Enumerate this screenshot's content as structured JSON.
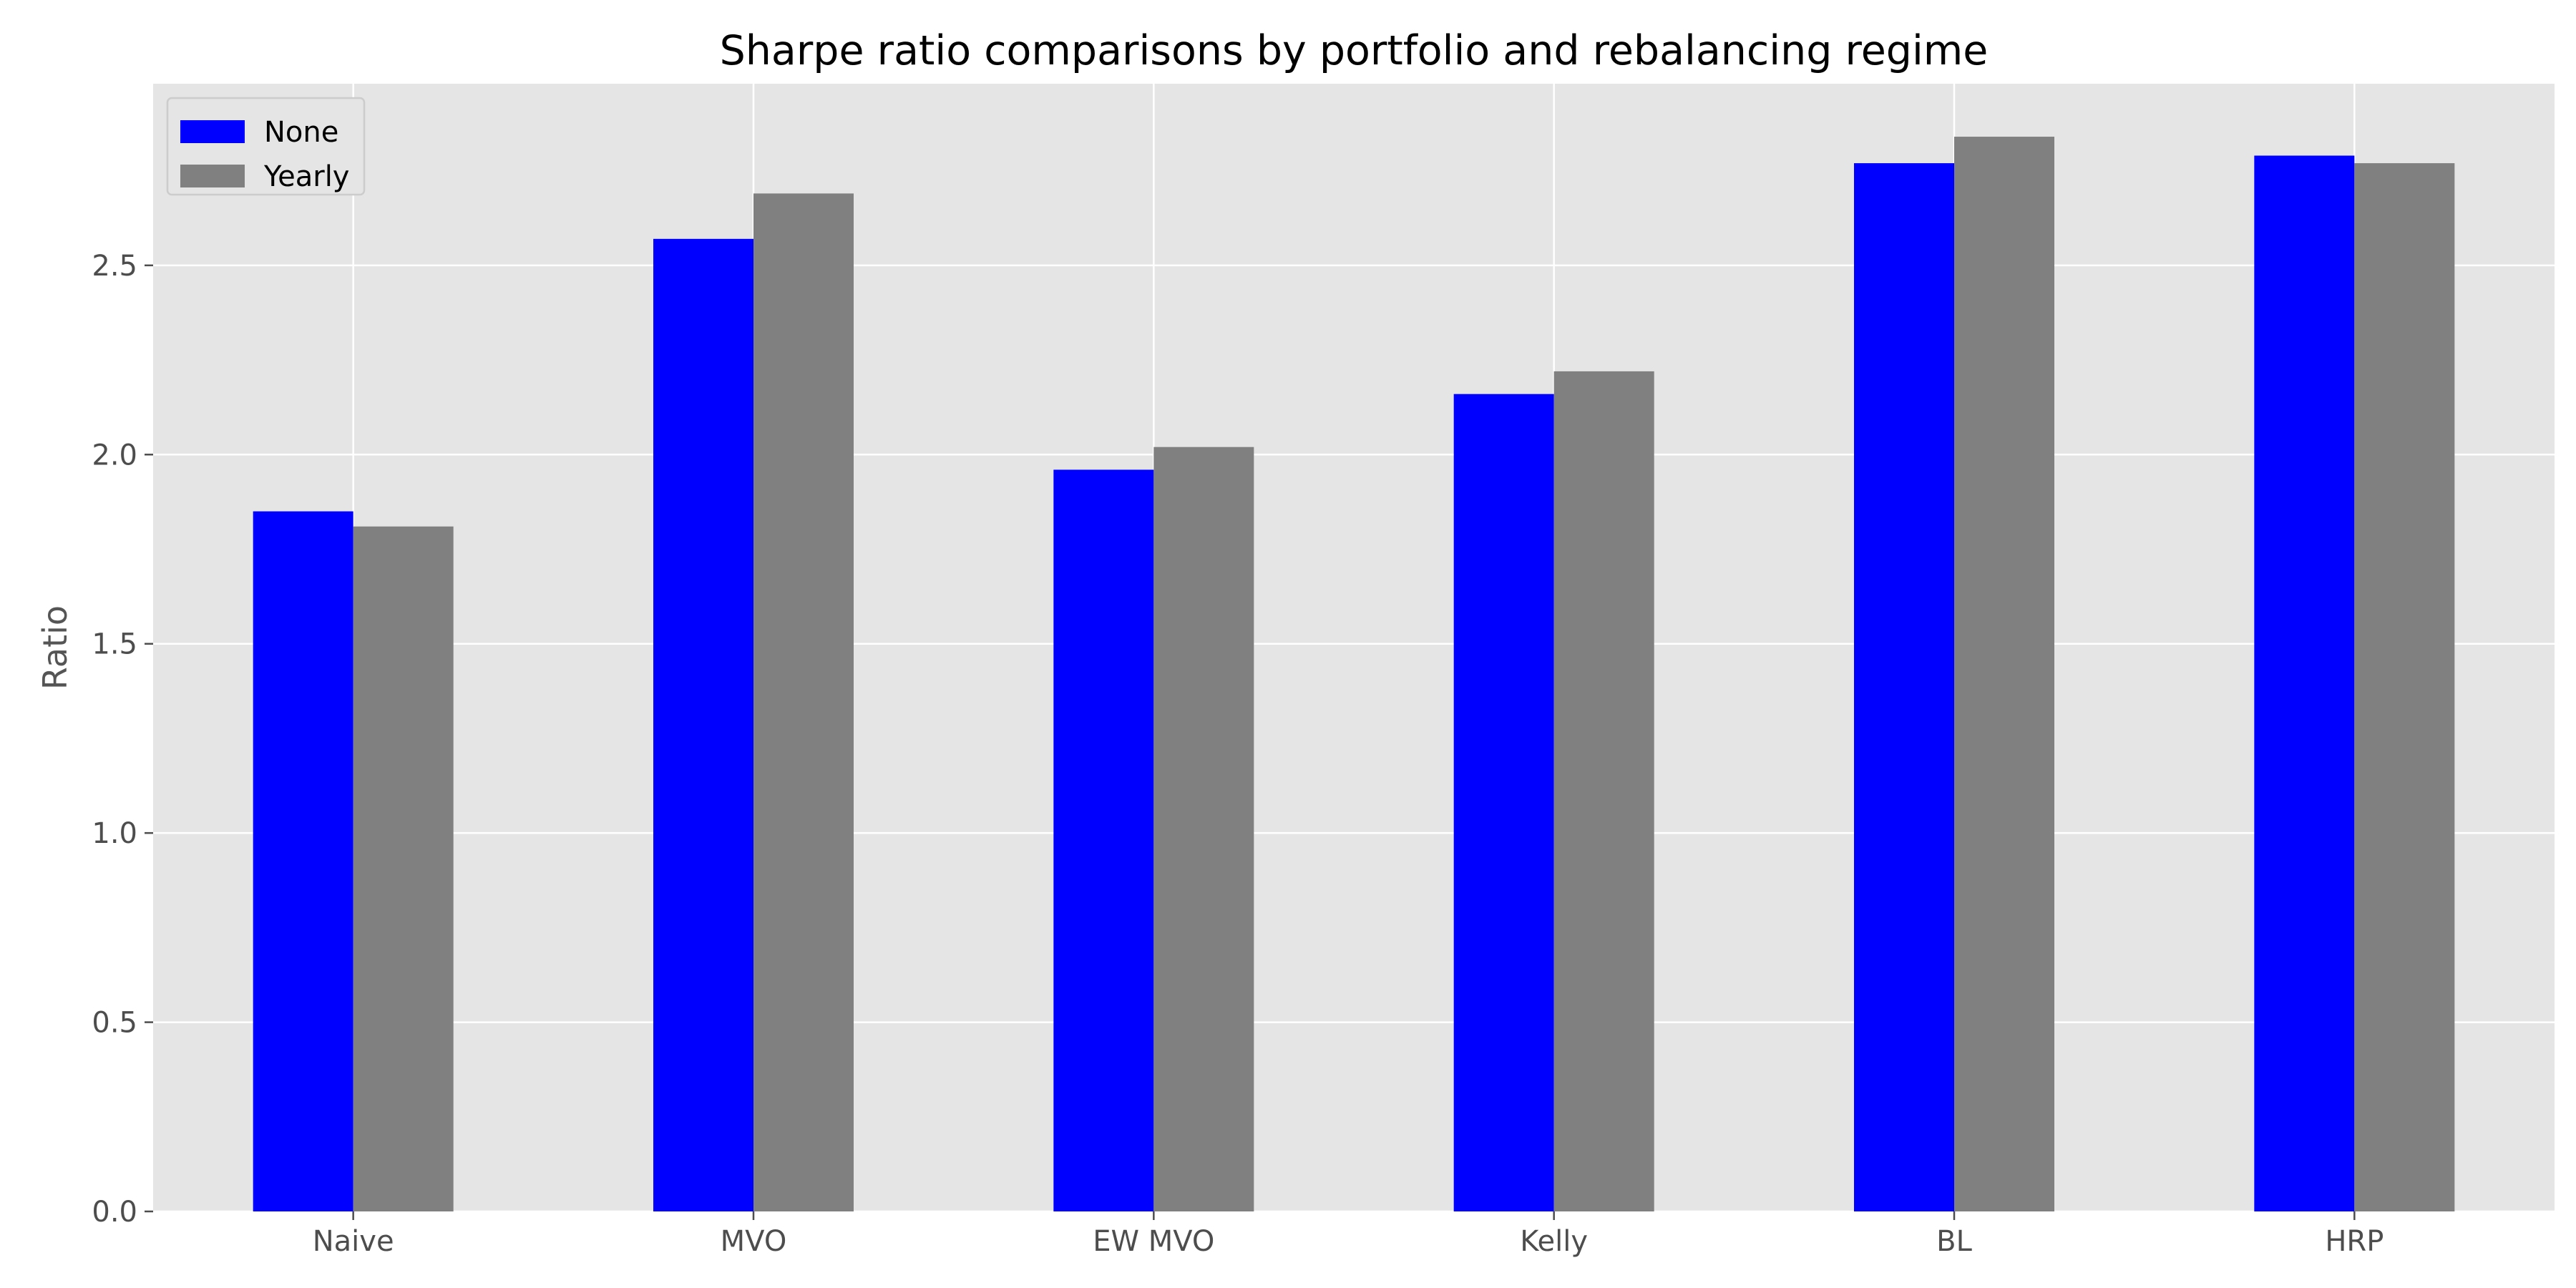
{
  "chart_data": {
    "type": "bar",
    "title": "Sharpe ratio comparisons by portfolio and rebalancing regime",
    "xlabel": "",
    "ylabel": "Ratio",
    "categories": [
      "Naive",
      "MVO",
      "EW MVO",
      "Kelly",
      "BL",
      "HRP"
    ],
    "series": [
      {
        "name": "None",
        "color": "#0000ff",
        "values": [
          1.85,
          2.57,
          1.96,
          2.16,
          2.77,
          2.79
        ]
      },
      {
        "name": "Yearly",
        "color": "#808080",
        "values": [
          1.81,
          2.69,
          2.02,
          2.22,
          2.84,
          2.77
        ]
      }
    ],
    "ylim": [
      0,
      2.98
    ],
    "yticks": [
      "0.0",
      "0.5",
      "1.0",
      "1.5",
      "2.0",
      "2.5"
    ],
    "grid": true,
    "legend_position": "top-left",
    "background_color": "#e5e5e5",
    "grid_color": "#ffffff"
  }
}
